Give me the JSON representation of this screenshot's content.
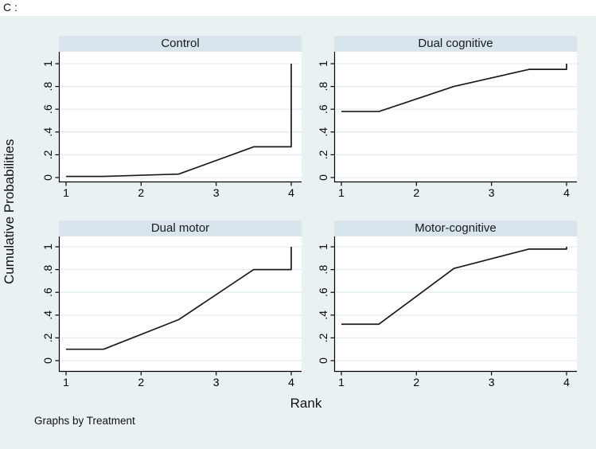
{
  "figure_label": "C :",
  "by_note": "Graphs by Treatment",
  "axes": {
    "x_title": "Rank",
    "y_title": "Cumulative Probabilities",
    "x_ticks": [
      "1",
      "2",
      "3",
      "4"
    ],
    "y_ticks": [
      "0",
      ".2",
      ".4",
      ".6",
      ".8",
      "1"
    ],
    "x_range": [
      1,
      4
    ],
    "y_range": [
      0,
      1
    ],
    "grid": "horizontal gridlines at 0.2 intervals",
    "y_tick_label_rotation": 90
  },
  "colors": {
    "page_background": "#ffffff",
    "graph_background": "#eaf1f3",
    "panel_header": "#d9e5ec",
    "plot_background": "#ffffff",
    "gridline": "#e3edf2",
    "series_line": "#1a1a1a",
    "axis": "#000000",
    "text": "#000000"
  },
  "chart_data": [
    {
      "type": "line",
      "title": "Control",
      "x": [
        1,
        1.5,
        2.5,
        3.5,
        4,
        4
      ],
      "y": [
        0.01,
        0.01,
        0.03,
        0.27,
        0.27,
        1.0
      ],
      "xlabel": "Rank",
      "ylabel": "Cumulative Probabilities",
      "xlim": [
        1,
        4
      ],
      "ylim": [
        0,
        1
      ]
    },
    {
      "type": "line",
      "title": "Dual cognitive",
      "x": [
        1,
        1.5,
        2.5,
        3.5,
        4,
        4
      ],
      "y": [
        0.58,
        0.58,
        0.8,
        0.95,
        0.95,
        1.0
      ],
      "xlabel": "Rank",
      "ylabel": "Cumulative Probabilities",
      "xlim": [
        1,
        4
      ],
      "ylim": [
        0,
        1
      ]
    },
    {
      "type": "line",
      "title": "Dual motor",
      "x": [
        1,
        1.5,
        2.5,
        3.5,
        4,
        4
      ],
      "y": [
        0.1,
        0.1,
        0.36,
        0.8,
        0.8,
        1.0
      ],
      "xlabel": "Rank",
      "ylabel": "Cumulative Probabilities",
      "xlim": [
        1,
        4
      ],
      "ylim": [
        0,
        1
      ]
    },
    {
      "type": "line",
      "title": "Motor-cognitive",
      "x": [
        1,
        1.5,
        2.5,
        3.5,
        4,
        4
      ],
      "y": [
        0.32,
        0.32,
        0.81,
        0.98,
        0.98,
        1.0
      ],
      "xlabel": "Rank",
      "ylabel": "Cumulative Probabilities",
      "xlim": [
        1,
        4
      ],
      "ylim": [
        0,
        1
      ]
    }
  ]
}
